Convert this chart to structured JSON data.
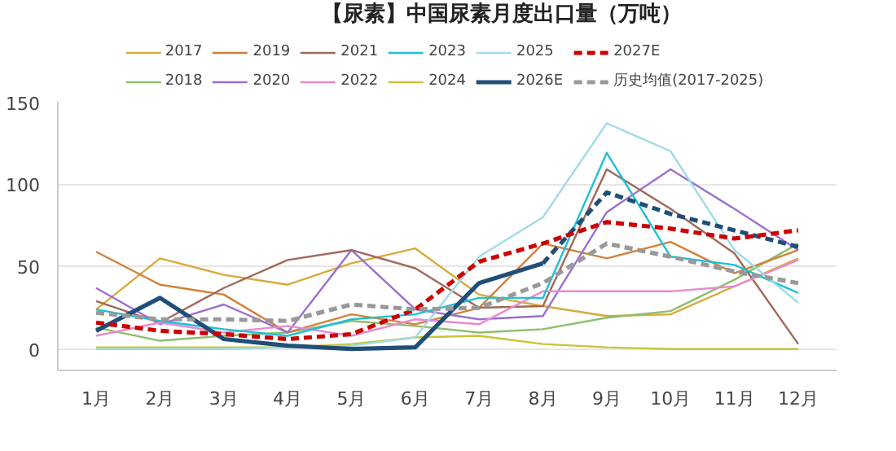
{
  "chart_data": {
    "type": "line",
    "title": "【尿素】中国尿素月度出口量（万吨）",
    "categories": [
      "1月",
      "2月",
      "3月",
      "4月",
      "5月",
      "6月",
      "7月",
      "8月",
      "9月",
      "10月",
      "11月",
      "12月"
    ],
    "series": [
      {
        "name": "2017",
        "color": "#d9a93a",
        "values": [
          24,
          55,
          45,
          39,
          52,
          61,
          33,
          26,
          20,
          21,
          38,
          55
        ]
      },
      {
        "name": "2018",
        "color": "#8cbf6a",
        "values": [
          13,
          5,
          8,
          10,
          17,
          14,
          10,
          12,
          19,
          23,
          42,
          64
        ]
      },
      {
        "name": "2019",
        "color": "#d2803a",
        "values": [
          59,
          39,
          33,
          10,
          21,
          15,
          25,
          64,
          55,
          65,
          46,
          60
        ]
      },
      {
        "name": "2020",
        "color": "#9b6fd0",
        "values": [
          37,
          15,
          27,
          10,
          60,
          24,
          18,
          20,
          83,
          109,
          85,
          60
        ]
      },
      {
        "name": "2021",
        "color": "#a0685a",
        "values": [
          29,
          16,
          37,
          54,
          60,
          49,
          25,
          26,
          109,
          85,
          58,
          3
        ]
      },
      {
        "name": "2022",
        "color": "#e88ad0",
        "values": [
          8,
          16,
          10,
          14,
          8,
          18,
          15,
          35,
          35,
          35,
          38,
          54
        ]
      },
      {
        "name": "2023",
        "color": "#1fc0d6",
        "values": [
          24,
          17,
          12,
          8,
          18,
          21,
          31,
          31,
          119,
          56,
          51,
          34
        ]
      },
      {
        "name": "2024",
        "color": "#c9c33a",
        "values": [
          1,
          1,
          1,
          1,
          3,
          7,
          8,
          3,
          1,
          0,
          0,
          0
        ]
      },
      {
        "name": "2025",
        "color": "#9fdbe8",
        "values": [
          0,
          0,
          0,
          1,
          2,
          7,
          56,
          80,
          137,
          120,
          60,
          28
        ]
      },
      {
        "name": "2026E",
        "color": "#1f4e79",
        "line_style": "solid",
        "values": [
          11,
          31,
          6,
          2,
          0,
          1,
          40,
          52,
          null,
          null,
          null,
          null
        ]
      },
      {
        "color": "#1f4e79",
        "line_style": "dashed",
        "values": [
          null,
          null,
          null,
          null,
          null,
          null,
          null,
          52,
          95,
          82,
          72,
          62
        ]
      },
      {
        "name": "2027E",
        "color": "#cc0000",
        "line_style": "dashed",
        "values": [
          16,
          11,
          9,
          6,
          9,
          24,
          53,
          64,
          77,
          73,
          67,
          72
        ]
      },
      {
        "name": "历史均值(2017-2025)",
        "color": "#999999",
        "line_style": "dashed",
        "values": [
          22,
          18,
          18,
          17,
          27,
          24,
          25,
          40,
          64,
          56,
          47,
          40
        ]
      }
    ],
    "ylim": [
      -13,
      150
    ],
    "yticks": [
      0,
      50,
      100,
      150
    ],
    "grid": "y",
    "legend": "top",
    "line_style": "solid",
    "marker": "none"
  }
}
